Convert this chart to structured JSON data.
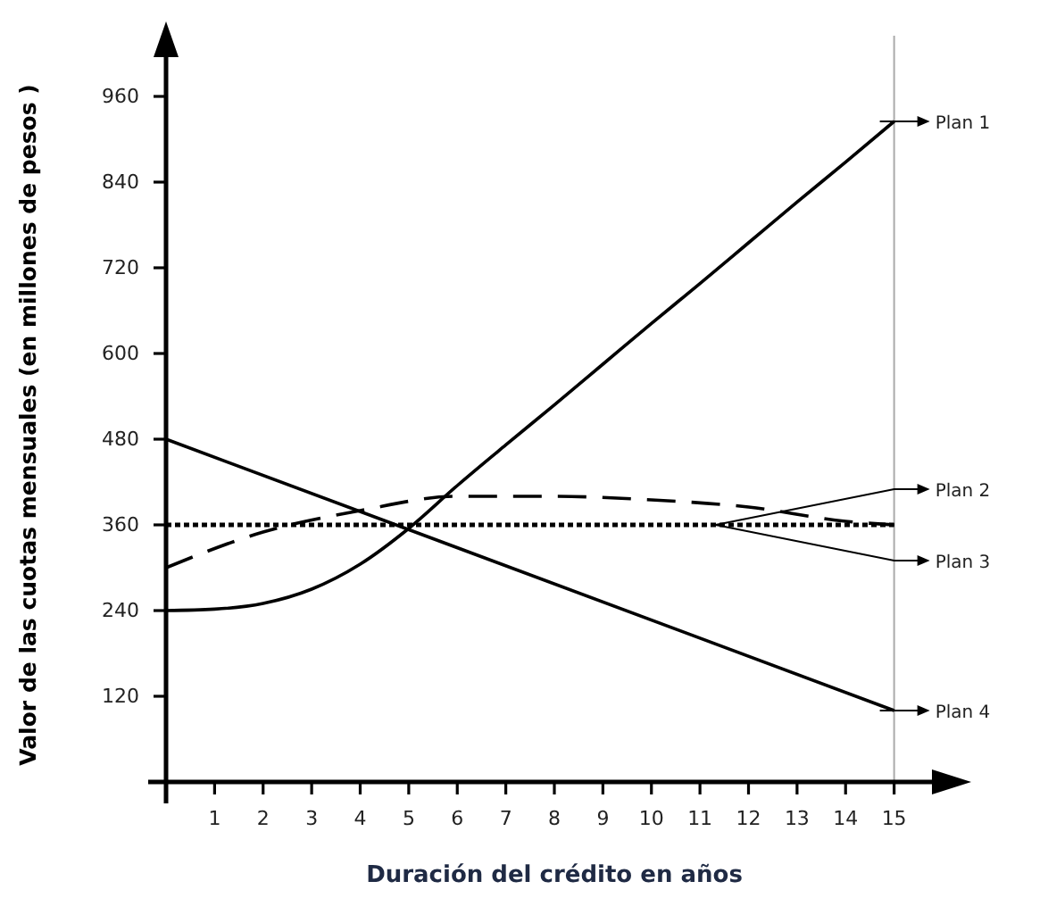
{
  "chart_data": {
    "type": "line",
    "xlabel": "Duración del crédito en años",
    "ylabel": "Valor de las cuotas mensuales (en millones de pesos )",
    "xlim": [
      0,
      16
    ],
    "ylim": [
      0,
      1050
    ],
    "xticks": [
      1,
      2,
      3,
      4,
      5,
      6,
      7,
      8,
      9,
      10,
      11,
      12,
      13,
      14,
      15
    ],
    "yticks": [
      120,
      240,
      360,
      480,
      600,
      720,
      840,
      960
    ],
    "grid": false,
    "legend": "right",
    "marker": "none",
    "ref_lines": [
      {
        "axis": "x",
        "value": 15,
        "color": "#aaaaaa"
      }
    ],
    "series": [
      {
        "name": "Plan 1",
        "color": "#000000",
        "line_style": "solid",
        "x": [
          0,
          1,
          2,
          3,
          4,
          5,
          6,
          7,
          8,
          9,
          10,
          11,
          12,
          13,
          14,
          15
        ],
        "values": [
          240,
          242,
          250,
          270,
          305,
          355,
          415,
          472,
          528,
          585,
          642,
          698,
          755,
          812,
          868,
          925
        ]
      },
      {
        "name": "Plan 2",
        "color": "#000000",
        "line_style": "dashed",
        "x": [
          0,
          2,
          4,
          6,
          8,
          10,
          12,
          14,
          15
        ],
        "values": [
          300,
          350,
          380,
          400,
          400,
          395,
          385,
          365,
          360
        ]
      },
      {
        "name": "Plan 3",
        "color": "#000000",
        "line_style": "dotted",
        "x": [
          0,
          15
        ],
        "values": [
          360,
          360
        ]
      },
      {
        "name": "Plan 4",
        "color": "#000000",
        "line_style": "solid",
        "x": [
          0,
          15
        ],
        "values": [
          480,
          100
        ]
      }
    ]
  }
}
